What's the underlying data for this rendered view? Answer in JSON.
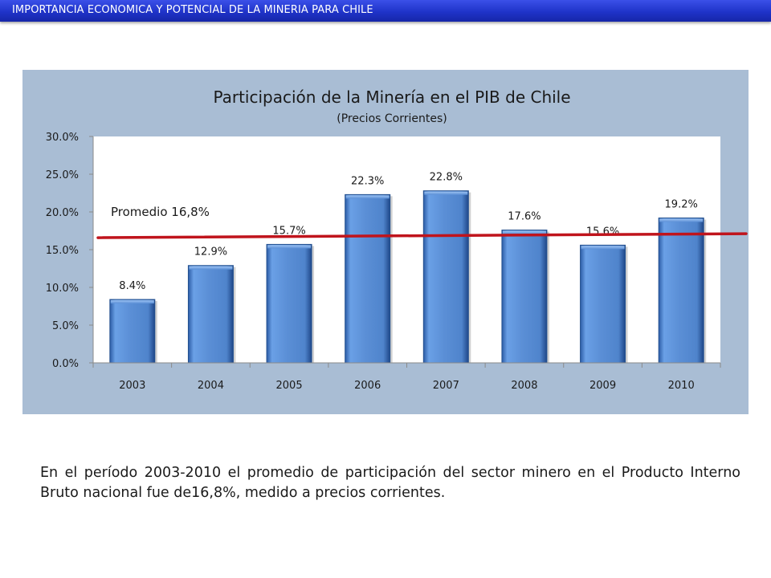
{
  "header": {
    "title": "IMPORTANCIA  ECONOMICA Y POTENCIAL DE LA MINERIA PARA CHILE"
  },
  "chart_data": {
    "type": "bar",
    "title": "Participación de la Minería en el PIB de Chile",
    "subtitle": "(Precios Corrientes)",
    "categories": [
      "2003",
      "2004",
      "2005",
      "2006",
      "2007",
      "2008",
      "2009",
      "2010"
    ],
    "values": [
      8.4,
      12.9,
      15.7,
      22.3,
      22.8,
      17.6,
      15.6,
      19.2
    ],
    "data_labels": [
      "8.4%",
      "12.9%",
      "15.7%",
      "22.3%",
      "22.8%",
      "17.6%",
      "15.6%",
      "19.2%"
    ],
    "ylim": [
      0,
      30
    ],
    "yticks": [
      0,
      5,
      10,
      15,
      20,
      25,
      30
    ],
    "ytick_labels": [
      "0.0%",
      "5.0%",
      "10.0%",
      "15.0%",
      "20.0%",
      "25.0%",
      "30.0%"
    ],
    "grid": false,
    "average": {
      "label": "Promedio 16,8%",
      "value": 16.8
    },
    "colors": {
      "bar": "#5b8fd6",
      "bar_dark": "#2f5fa8",
      "average_line": "#c0141c",
      "panel": "#a9bdd4"
    }
  },
  "body": {
    "text": "En el período 2003-2010 el promedio de participación del sector minero en el Producto Interno Bruto nacional fue de16,8%, medido a precios corrientes."
  }
}
